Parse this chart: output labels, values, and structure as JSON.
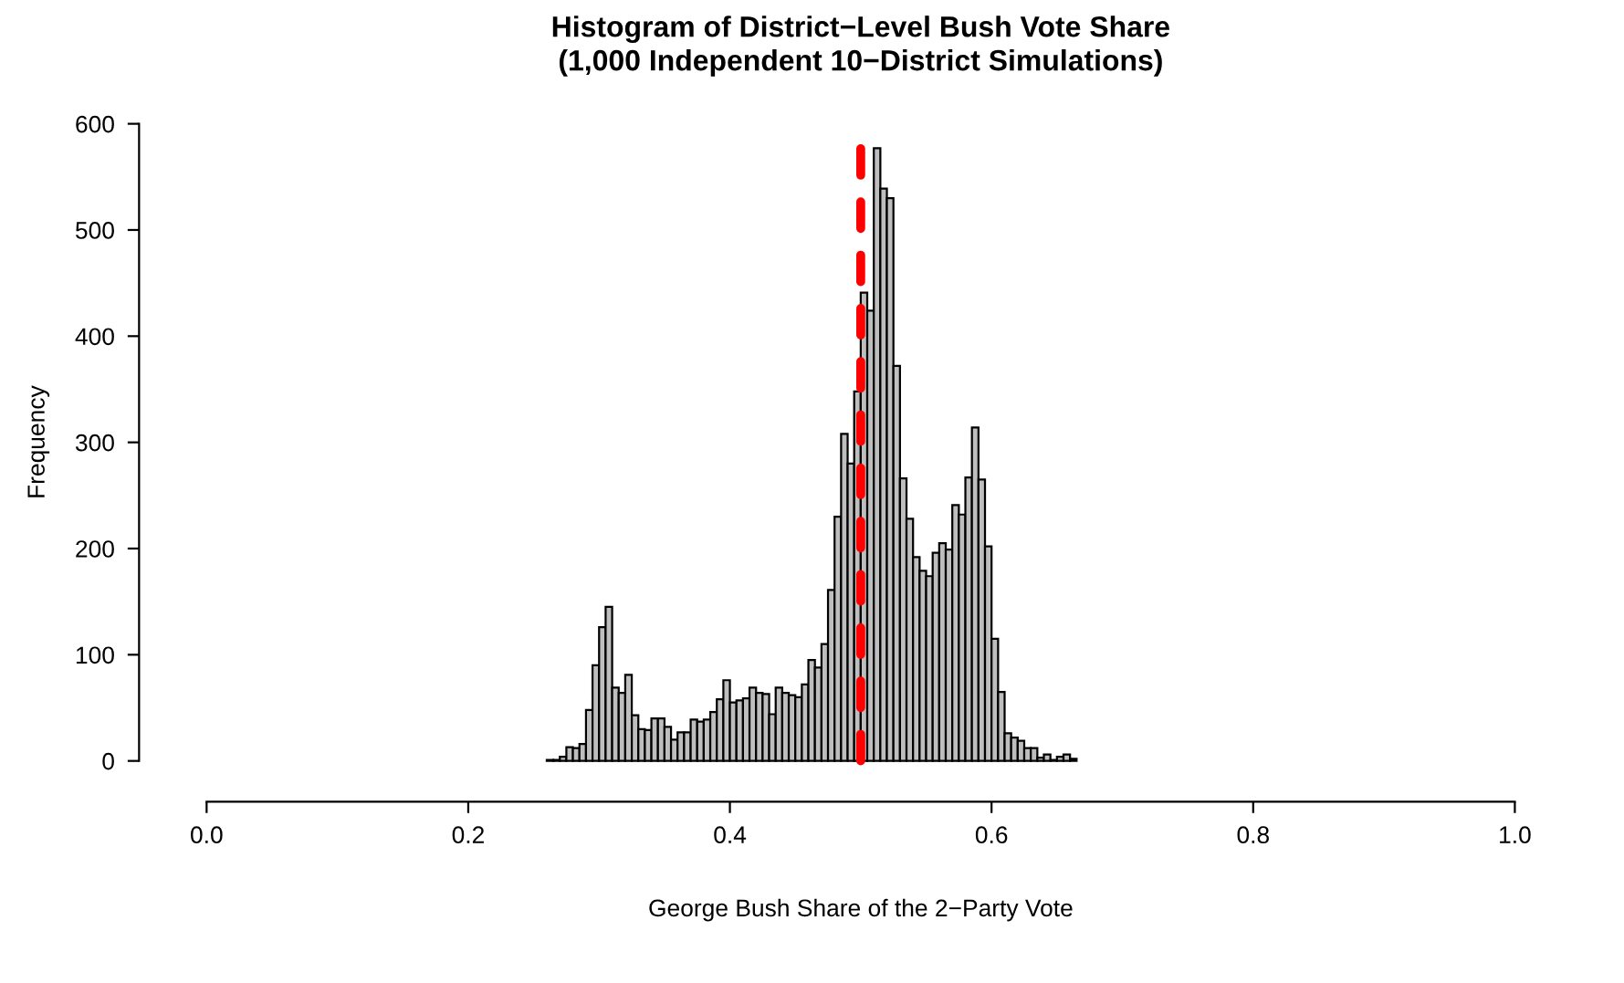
{
  "chart_data": {
    "type": "histogram",
    "title": "Histogram of District−Level Bush Vote Share\n(1,000 Independent 10−District Simulations)",
    "xlabel": "George Bush Share of the 2−Party Vote",
    "ylabel": "Frequency",
    "bins": [
      0.26,
      0.265,
      0.27,
      0.275,
      0.28,
      0.285,
      0.29,
      0.295,
      0.3,
      0.305,
      0.31,
      0.315,
      0.32,
      0.325,
      0.33,
      0.335,
      0.34,
      0.345,
      0.35,
      0.355,
      0.36,
      0.365,
      0.37,
      0.375,
      0.38,
      0.385,
      0.39,
      0.395,
      0.4,
      0.405,
      0.41,
      0.415,
      0.42,
      0.425,
      0.43,
      0.435,
      0.44,
      0.445,
      0.45,
      0.455,
      0.46,
      0.465,
      0.47,
      0.475,
      0.48,
      0.485,
      0.49,
      0.495,
      0.5,
      0.505,
      0.51,
      0.515,
      0.52,
      0.525,
      0.53,
      0.535,
      0.54,
      0.545,
      0.55,
      0.555,
      0.56,
      0.565,
      0.57,
      0.575,
      0.58,
      0.585,
      0.59,
      0.595,
      0.6,
      0.605,
      0.61,
      0.615,
      0.62,
      0.625,
      0.63,
      0.635,
      0.64,
      0.645,
      0.65,
      0.655,
      0.66,
      0.665
    ],
    "values": [
      1,
      1,
      4,
      13,
      12,
      16,
      48,
      90,
      126,
      145,
      69,
      64,
      81,
      43,
      30,
      29,
      40,
      40,
      32,
      20,
      27,
      27,
      39,
      37,
      39,
      46,
      58,
      76,
      55,
      57,
      59,
      69,
      64,
      63,
      44,
      69,
      64,
      62,
      60,
      72,
      95,
      88,
      110,
      161,
      230,
      308,
      280,
      348,
      441,
      424,
      577,
      539,
      530,
      372,
      266,
      228,
      192,
      179,
      174,
      196,
      205,
      199,
      241,
      232,
      267,
      314,
      265,
      202,
      115,
      65,
      26,
      22,
      19,
      12,
      12,
      3,
      6,
      1,
      4,
      6,
      2
    ],
    "color": "#bebebe",
    "xlim": [
      0,
      1
    ],
    "xticks": [
      {
        "value": 0,
        "label": "0.0"
      },
      0.2,
      0.4,
      0.6,
      0.8,
      {
        "value": 1,
        "label": "1.0"
      }
    ],
    "ylim": [
      0,
      600
    ],
    "yticks": [
      0,
      100,
      200,
      300,
      400,
      500,
      600
    ],
    "ref_lines": [
      {
        "axis": "x",
        "value": 0.5,
        "label": null,
        "color": "#ff0000",
        "line_style": "dashed"
      }
    ],
    "grid": false,
    "legend": false
  }
}
